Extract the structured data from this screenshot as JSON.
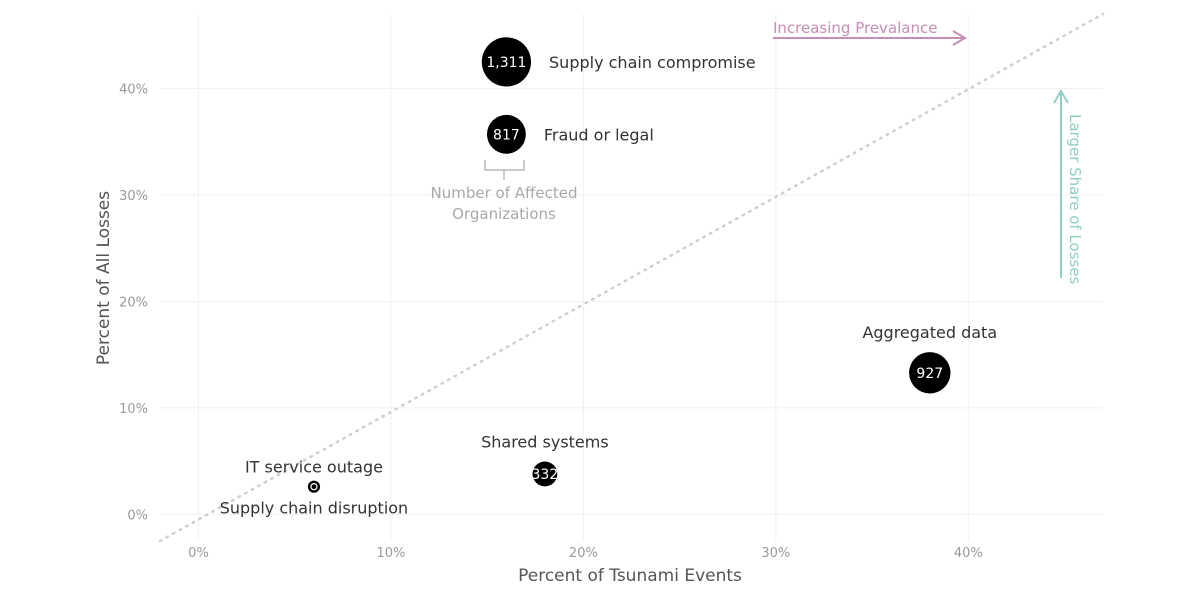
{
  "chart_data": {
    "type": "scatter",
    "xlabel": "Percent of Tsunami Events",
    "ylabel": "Percent of All Losses",
    "xlim": [
      -2,
      47
    ],
    "ylim": [
      -2.5,
      47
    ],
    "xticks": [
      0,
      10,
      20,
      30,
      40
    ],
    "yticks": [
      0,
      10,
      20,
      30,
      40
    ],
    "tick_format": "%",
    "grid": true,
    "reference_line": "y = x (dotted diagonal)",
    "points": [
      {
        "name": "Supply chain compromise",
        "x": 16,
        "y": 42.5,
        "count": 1311,
        "count_label": "1,311",
        "label_side": "right"
      },
      {
        "name": "Fraud or legal",
        "x": 16,
        "y": 35.7,
        "count": 817,
        "count_label": "817",
        "label_side": "right"
      },
      {
        "name": "Aggregated data",
        "x": 38,
        "y": 13.3,
        "count": 927,
        "count_label": "927",
        "label_side": "above"
      },
      {
        "name": "Shared systems",
        "x": 18,
        "y": 3.8,
        "count": 332,
        "count_label": "332",
        "label_side": "above"
      },
      {
        "name": "IT service outage",
        "x": 6,
        "y": 2.6,
        "count": 80,
        "count_label": "",
        "label_side": "above"
      },
      {
        "name": "Supply chain disruption",
        "x": 6,
        "y": 2.6,
        "count": 20,
        "count_label": "",
        "label_side": "below"
      }
    ],
    "size_legend": {
      "text_line1": "Number of Affected",
      "text_line2": "Organizations"
    },
    "annotations": {
      "horizontal_arrow": {
        "text": "Increasing Prevalance",
        "color": "#c48fb6"
      },
      "vertical_arrow": {
        "text": "Larger Share of Losses",
        "color": "#8fcfc4"
      }
    }
  }
}
